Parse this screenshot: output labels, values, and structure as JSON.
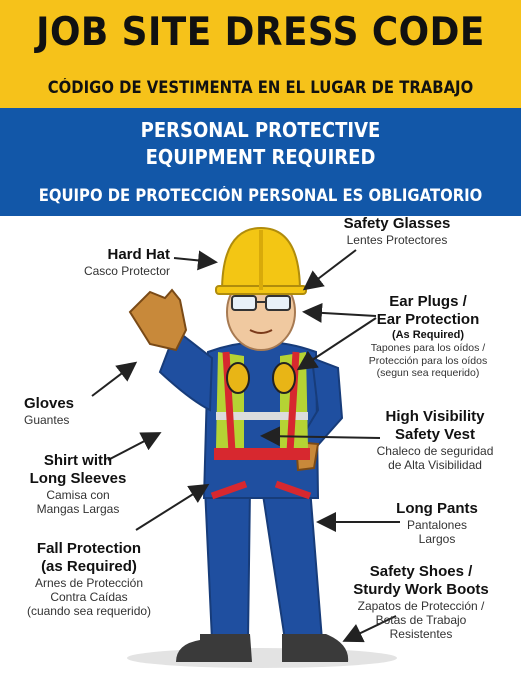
{
  "header": {
    "title": "JOB SITE DRESS CODE",
    "subtitle": "CÓDIGO DE VESTIMENTA EN EL LUGAR DE TRABAJO"
  },
  "ppe": {
    "line1": "PERSONAL PROTECTIVE",
    "line2": "EQUIPMENT REQUIRED",
    "spanish": "EQUIPO DE PROTECCIÓN PERSONAL ES OBLIGATORIO"
  },
  "labels": {
    "hard_hat": {
      "en": "Hard Hat",
      "es": "Casco Protector"
    },
    "safety_glasses": {
      "en": "Safety Glasses",
      "es": "Lentes Protectores"
    },
    "ear": {
      "en1": "Ear Plugs /",
      "en2": "Ear Protection",
      "note": "(As Required)",
      "es1": "Tapones para los oídos /",
      "es2": "Protección para los oídos",
      "es3": "(segun sea requerido)"
    },
    "gloves": {
      "en": "Gloves",
      "es": "Guantes"
    },
    "shirt": {
      "en1": "Shirt with",
      "en2": "Long Sleeves",
      "es1": "Camisa con",
      "es2": "Mangas Largas"
    },
    "vest": {
      "en1": "High Visibility",
      "en2": "Safety Vest",
      "es1": "Chaleco de seguridad",
      "es2": "de Alta Visibilidad"
    },
    "pants": {
      "en": "Long Pants",
      "es1": "Pantalones",
      "es2": "Largos"
    },
    "fall": {
      "en1": "Fall Protection",
      "en2": "(as Required)",
      "es1": "Arnes de Protección",
      "es2": "Contra Caídas",
      "es3": "(cuando sea requerido)"
    },
    "shoes": {
      "en1": "Safety Shoes /",
      "en2": "Sturdy Work Boots",
      "es1": "Zapatos de Protección /",
      "es2": "Botas de Trabajo",
      "es3": "Resistentes"
    }
  },
  "colors": {
    "yellow_banner": "#f6c21a",
    "blue_banner": "#1257a8",
    "hi_vis_green": "#b5d334",
    "harness_red": "#d7282f",
    "coverall_blue": "#1f4fa0"
  }
}
